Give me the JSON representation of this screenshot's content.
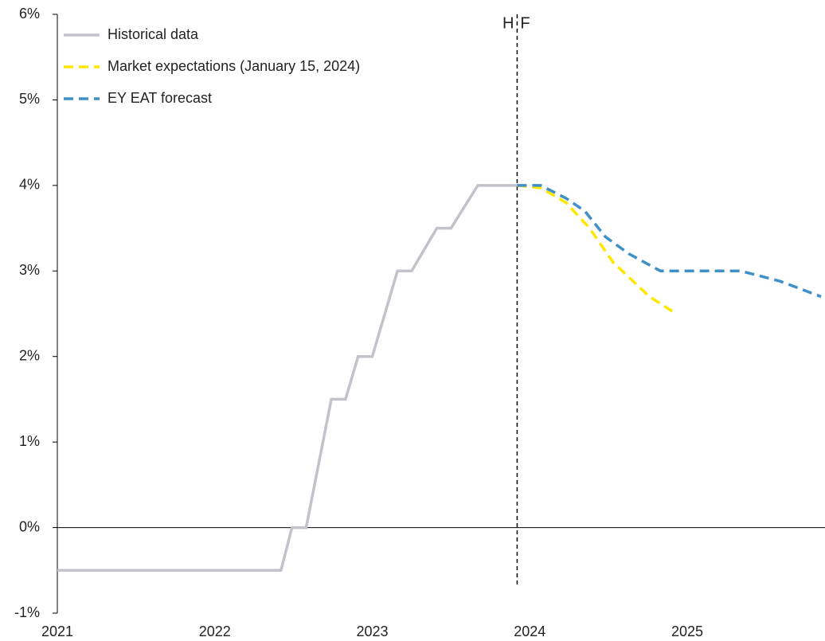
{
  "chart_data": {
    "type": "line",
    "xlim": [
      2021,
      2025.875
    ],
    "xticks": [
      2021,
      2022,
      2023,
      2024,
      2025
    ],
    "ylim": [
      -1,
      6
    ],
    "yticks": [
      {
        "value": -1,
        "label": "-1%"
      },
      {
        "value": 0,
        "label": "0%"
      },
      {
        "value": 1,
        "label": "1%"
      },
      {
        "value": 2,
        "label": "2%"
      },
      {
        "value": 3,
        "label": "3%"
      },
      {
        "value": 4,
        "label": "4%"
      },
      {
        "value": 5,
        "label": "5%"
      },
      {
        "value": 6,
        "label": "6%"
      }
    ],
    "legend": "upper left",
    "divider": {
      "x": 2023.92,
      "left_label": "H",
      "right_label": "F"
    },
    "series": [
      {
        "name": "Historical data",
        "color": "#c3c2cb",
        "dashed": false,
        "x": [
          2021,
          2022.42,
          2022.49,
          2022.58,
          2022.74,
          2022.83,
          2022.91,
          2023.0,
          2023.16,
          2023.25,
          2023.41,
          2023.5,
          2023.67,
          2023.92
        ],
        "values": [
          -0.5,
          -0.5,
          0,
          0,
          1.5,
          1.5,
          2.0,
          2.0,
          3.0,
          3.0,
          3.5,
          3.5,
          4.0,
          4.0
        ]
      },
      {
        "name": "Market expectations (January 15, 2024)",
        "color": "#ffe600",
        "dashed": true,
        "x": [
          2023.92,
          2024.07,
          2024.23,
          2024.38,
          2024.53,
          2024.76,
          2024.93
        ],
        "values": [
          4.0,
          3.97,
          3.8,
          3.5,
          3.1,
          2.7,
          2.5
        ]
      },
      {
        "name": "EY EAT forecast",
        "color": "#3f8fc9",
        "dashed": true,
        "x": [
          2023.92,
          2024.07,
          2024.23,
          2024.35,
          2024.48,
          2024.63,
          2024.83,
          2025.34,
          2025.59,
          2025.85
        ],
        "values": [
          4.0,
          4.0,
          3.85,
          3.7,
          3.4,
          3.2,
          3.0,
          3.0,
          2.88,
          2.7
        ]
      }
    ]
  }
}
